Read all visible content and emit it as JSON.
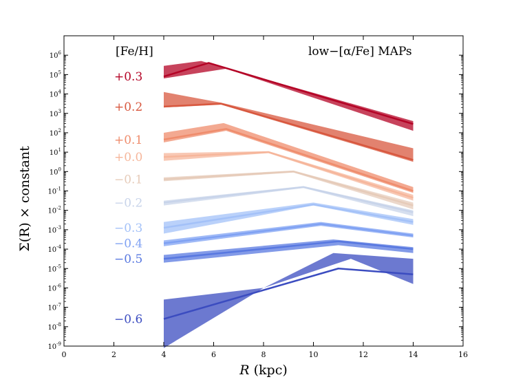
{
  "chart_data": {
    "type": "line",
    "title": "",
    "annotation_title": "low−[α/Fe] MAPs",
    "legend_header": "[Fe/H]",
    "xlabel": "R (kpc)",
    "xlabel_italic": "R",
    "xlabel_unit": " (kpc)",
    "ylabel": "Σ(R) × constant",
    "xlim": [
      0,
      16
    ],
    "ylim_log10": [
      -9,
      7
    ],
    "x_ticks": [
      0,
      2,
      4,
      6,
      8,
      10,
      12,
      14,
      16
    ],
    "y_ticks_log10": [
      6,
      5,
      4,
      3,
      2,
      1,
      0,
      -1,
      -2,
      -3,
      -4,
      -5,
      -6,
      -7,
      -8,
      -9
    ],
    "series": [
      {
        "name": "+0.3",
        "color": "#b40426",
        "line": [
          [
            4,
            4.9
          ],
          [
            5.8,
            5.6
          ],
          [
            14,
            2.45
          ]
        ],
        "band_upper": [
          [
            4,
            5.45
          ],
          [
            5.5,
            5.7
          ],
          [
            14,
            2.6
          ]
        ],
        "band_lower": [
          [
            4,
            4.8
          ],
          [
            6.5,
            5.3
          ],
          [
            14,
            2.1
          ]
        ]
      },
      {
        "name": "+0.2",
        "color": "#d8583f",
        "line": [
          [
            4,
            3.35
          ],
          [
            6.3,
            3.5
          ],
          [
            14,
            0.6
          ]
        ],
        "band_upper": [
          [
            4,
            4.1
          ],
          [
            6.3,
            3.55
          ],
          [
            14,
            1.2
          ]
        ],
        "band_lower": [
          [
            4,
            3.3
          ],
          [
            6.3,
            3.45
          ],
          [
            14,
            0.5
          ]
        ]
      },
      {
        "name": "+0.1",
        "color": "#ef8c6c",
        "line": [
          [
            4,
            1.65
          ],
          [
            6.5,
            2.2
          ],
          [
            14,
            -1.0
          ]
        ],
        "band_upper": [
          [
            4,
            2.0
          ],
          [
            6.4,
            2.5
          ],
          [
            14,
            -0.8
          ]
        ],
        "band_lower": [
          [
            4,
            1.5
          ],
          [
            6.5,
            2.1
          ],
          [
            14,
            -1.1
          ]
        ]
      },
      {
        "name": "+0.0",
        "color": "#f6b69b",
        "line": [
          [
            4,
            0.75
          ],
          [
            8.2,
            1.0
          ],
          [
            14,
            -1.35
          ]
        ],
        "band_upper": [
          [
            4,
            0.95
          ],
          [
            8.2,
            1.05
          ],
          [
            14,
            -1.2
          ]
        ],
        "band_lower": [
          [
            4,
            0.55
          ],
          [
            8.2,
            0.95
          ],
          [
            14,
            -1.5
          ]
        ]
      },
      {
        "name": "−0.1",
        "color": "#e6cbb9",
        "line": [
          [
            4,
            -0.4
          ],
          [
            9.2,
            0.0
          ],
          [
            14,
            -1.75
          ]
        ],
        "band_upper": [
          [
            4,
            -0.3
          ],
          [
            9.2,
            0.05
          ],
          [
            14,
            -1.6
          ]
        ],
        "band_lower": [
          [
            4,
            -0.5
          ],
          [
            9.2,
            -0.05
          ],
          [
            14,
            -1.95
          ]
        ]
      },
      {
        "name": "−0.2",
        "color": "#c8d4ea",
        "line": [
          [
            4,
            -1.6
          ],
          [
            9.6,
            -0.8
          ],
          [
            14,
            -2.1
          ]
        ],
        "band_upper": [
          [
            4,
            -1.5
          ],
          [
            9.6,
            -0.75
          ],
          [
            14,
            -2.0
          ]
        ],
        "band_lower": [
          [
            4,
            -1.75
          ],
          [
            9.6,
            -0.85
          ],
          [
            14,
            -2.3
          ]
        ]
      },
      {
        "name": "−0.3",
        "color": "#a3c1f8",
        "line": [
          [
            4,
            -2.9
          ],
          [
            10,
            -1.7
          ],
          [
            14,
            -2.6
          ]
        ],
        "band_upper": [
          [
            4,
            -2.6
          ],
          [
            10,
            -1.6
          ],
          [
            14,
            -2.45
          ]
        ],
        "band_lower": [
          [
            4,
            -3.2
          ],
          [
            10,
            -1.75
          ],
          [
            14,
            -2.75
          ]
        ]
      },
      {
        "name": "−0.4",
        "color": "#7fa1f3",
        "line": [
          [
            4,
            -3.7
          ],
          [
            10.3,
            -2.7
          ],
          [
            14,
            -3.3
          ]
        ],
        "band_upper": [
          [
            4,
            -3.55
          ],
          [
            10.3,
            -2.6
          ],
          [
            14,
            -3.2
          ]
        ],
        "band_lower": [
          [
            4,
            -3.85
          ],
          [
            10.3,
            -2.8
          ],
          [
            14,
            -3.4
          ]
        ]
      },
      {
        "name": "−0.5",
        "color": "#5878e0",
        "line": [
          [
            4,
            -4.5
          ],
          [
            11,
            -3.6
          ],
          [
            14,
            -4.0
          ]
        ],
        "band_upper": [
          [
            4,
            -4.3
          ],
          [
            10.8,
            -3.5
          ],
          [
            14,
            -3.9
          ]
        ],
        "band_lower": [
          [
            4,
            -4.7
          ],
          [
            11,
            -3.8
          ],
          [
            14,
            -4.2
          ]
        ]
      },
      {
        "name": "−0.6",
        "color": "#3b4cc0",
        "line": [
          [
            4,
            -7.6
          ],
          [
            11,
            -5.0
          ],
          [
            14,
            -5.3
          ]
        ],
        "band_upper": [
          [
            4,
            -6.6
          ],
          [
            8,
            -6.0
          ],
          [
            10.8,
            -4.2
          ],
          [
            14,
            -4.5
          ]
        ],
        "band_lower": [
          [
            4,
            -9.1
          ],
          [
            8,
            -6.0
          ],
          [
            11.5,
            -4.5
          ],
          [
            14,
            -5.8
          ]
        ]
      }
    ]
  }
}
